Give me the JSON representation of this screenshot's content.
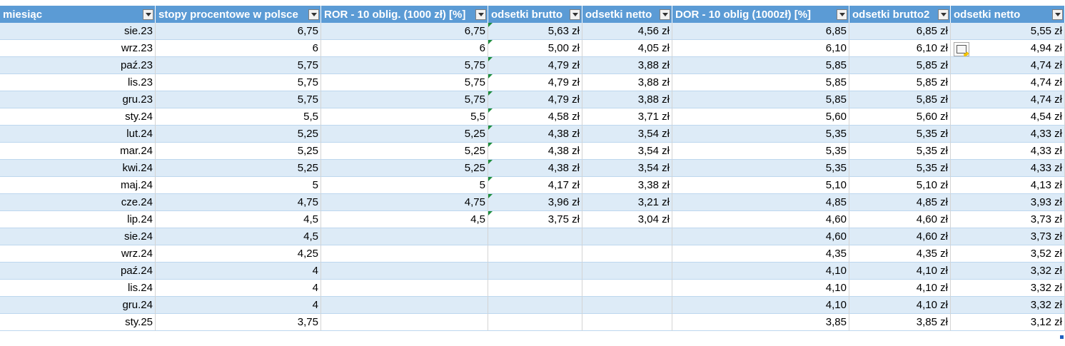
{
  "headers": [
    "miesiąc",
    "stopy procentowe w polsce",
    "ROR - 10 oblig. (1000 zł) [%]",
    "odsetki brutto",
    "odsetki netto",
    "DOR - 10 oblig (1000zł) [%]",
    "odsetki brutto2",
    "odsetki  netto"
  ],
  "rows": [
    [
      "sie.23",
      "6,75",
      "6,75",
      "5,63 zł",
      "4,56 zł",
      "6,85",
      "6,85 zł",
      "5,55 zł"
    ],
    [
      "wrz.23",
      "6",
      "6",
      "5,00 zł",
      "4,05 zł",
      "6,10",
      "6,10 zł",
      "4,94 zł"
    ],
    [
      "paź.23",
      "5,75",
      "5,75",
      "4,79 zł",
      "3,88 zł",
      "5,85",
      "5,85 zł",
      "4,74 zł"
    ],
    [
      "lis.23",
      "5,75",
      "5,75",
      "4,79 zł",
      "3,88 zł",
      "5,85",
      "5,85 zł",
      "4,74 zł"
    ],
    [
      "gru.23",
      "5,75",
      "5,75",
      "4,79 zł",
      "3,88 zł",
      "5,85",
      "5,85 zł",
      "4,74 zł"
    ],
    [
      "sty.24",
      "5,5",
      "5,5",
      "4,58 zł",
      "3,71 zł",
      "5,60",
      "5,60 zł",
      "4,54 zł"
    ],
    [
      "lut.24",
      "5,25",
      "5,25",
      "4,38 zł",
      "3,54 zł",
      "5,35",
      "5,35 zł",
      "4,33 zł"
    ],
    [
      "mar.24",
      "5,25",
      "5,25",
      "4,38 zł",
      "3,54 zł",
      "5,35",
      "5,35 zł",
      "4,33 zł"
    ],
    [
      "kwi.24",
      "5,25",
      "5,25",
      "4,38 zł",
      "3,54 zł",
      "5,35",
      "5,35 zł",
      "4,33 zł"
    ],
    [
      "maj.24",
      "5",
      "5",
      "4,17 zł",
      "3,38 zł",
      "5,10",
      "5,10 zł",
      "4,13 zł"
    ],
    [
      "cze.24",
      "4,75",
      "4,75",
      "3,96 zł",
      "3,21 zł",
      "4,85",
      "4,85 zł",
      "3,93 zł"
    ],
    [
      "lip.24",
      "4,5",
      "4,5",
      "3,75 zł",
      "3,04 zł",
      "4,60",
      "4,60 zł",
      "3,73 zł"
    ],
    [
      "sie.24",
      "4,5",
      "",
      "",
      "",
      "4,60",
      "4,60 zł",
      "3,73 zł"
    ],
    [
      "wrz.24",
      "4,25",
      "",
      "",
      "",
      "4,35",
      "4,35 zł",
      "3,52 zł"
    ],
    [
      "paź.24",
      "4",
      "",
      "",
      "",
      "4,10",
      "4,10 zł",
      "3,32 zł"
    ],
    [
      "lis.24",
      "4",
      "",
      "",
      "",
      "4,10",
      "4,10 zł",
      "3,32 zł"
    ],
    [
      "gru.24",
      "4",
      "",
      "",
      "",
      "4,10",
      "4,10 zł",
      "3,32 zł"
    ],
    [
      "sty.25",
      "3,75",
      "",
      "",
      "",
      "3,85",
      "3,85 zł",
      "3,12 zł"
    ]
  ]
}
